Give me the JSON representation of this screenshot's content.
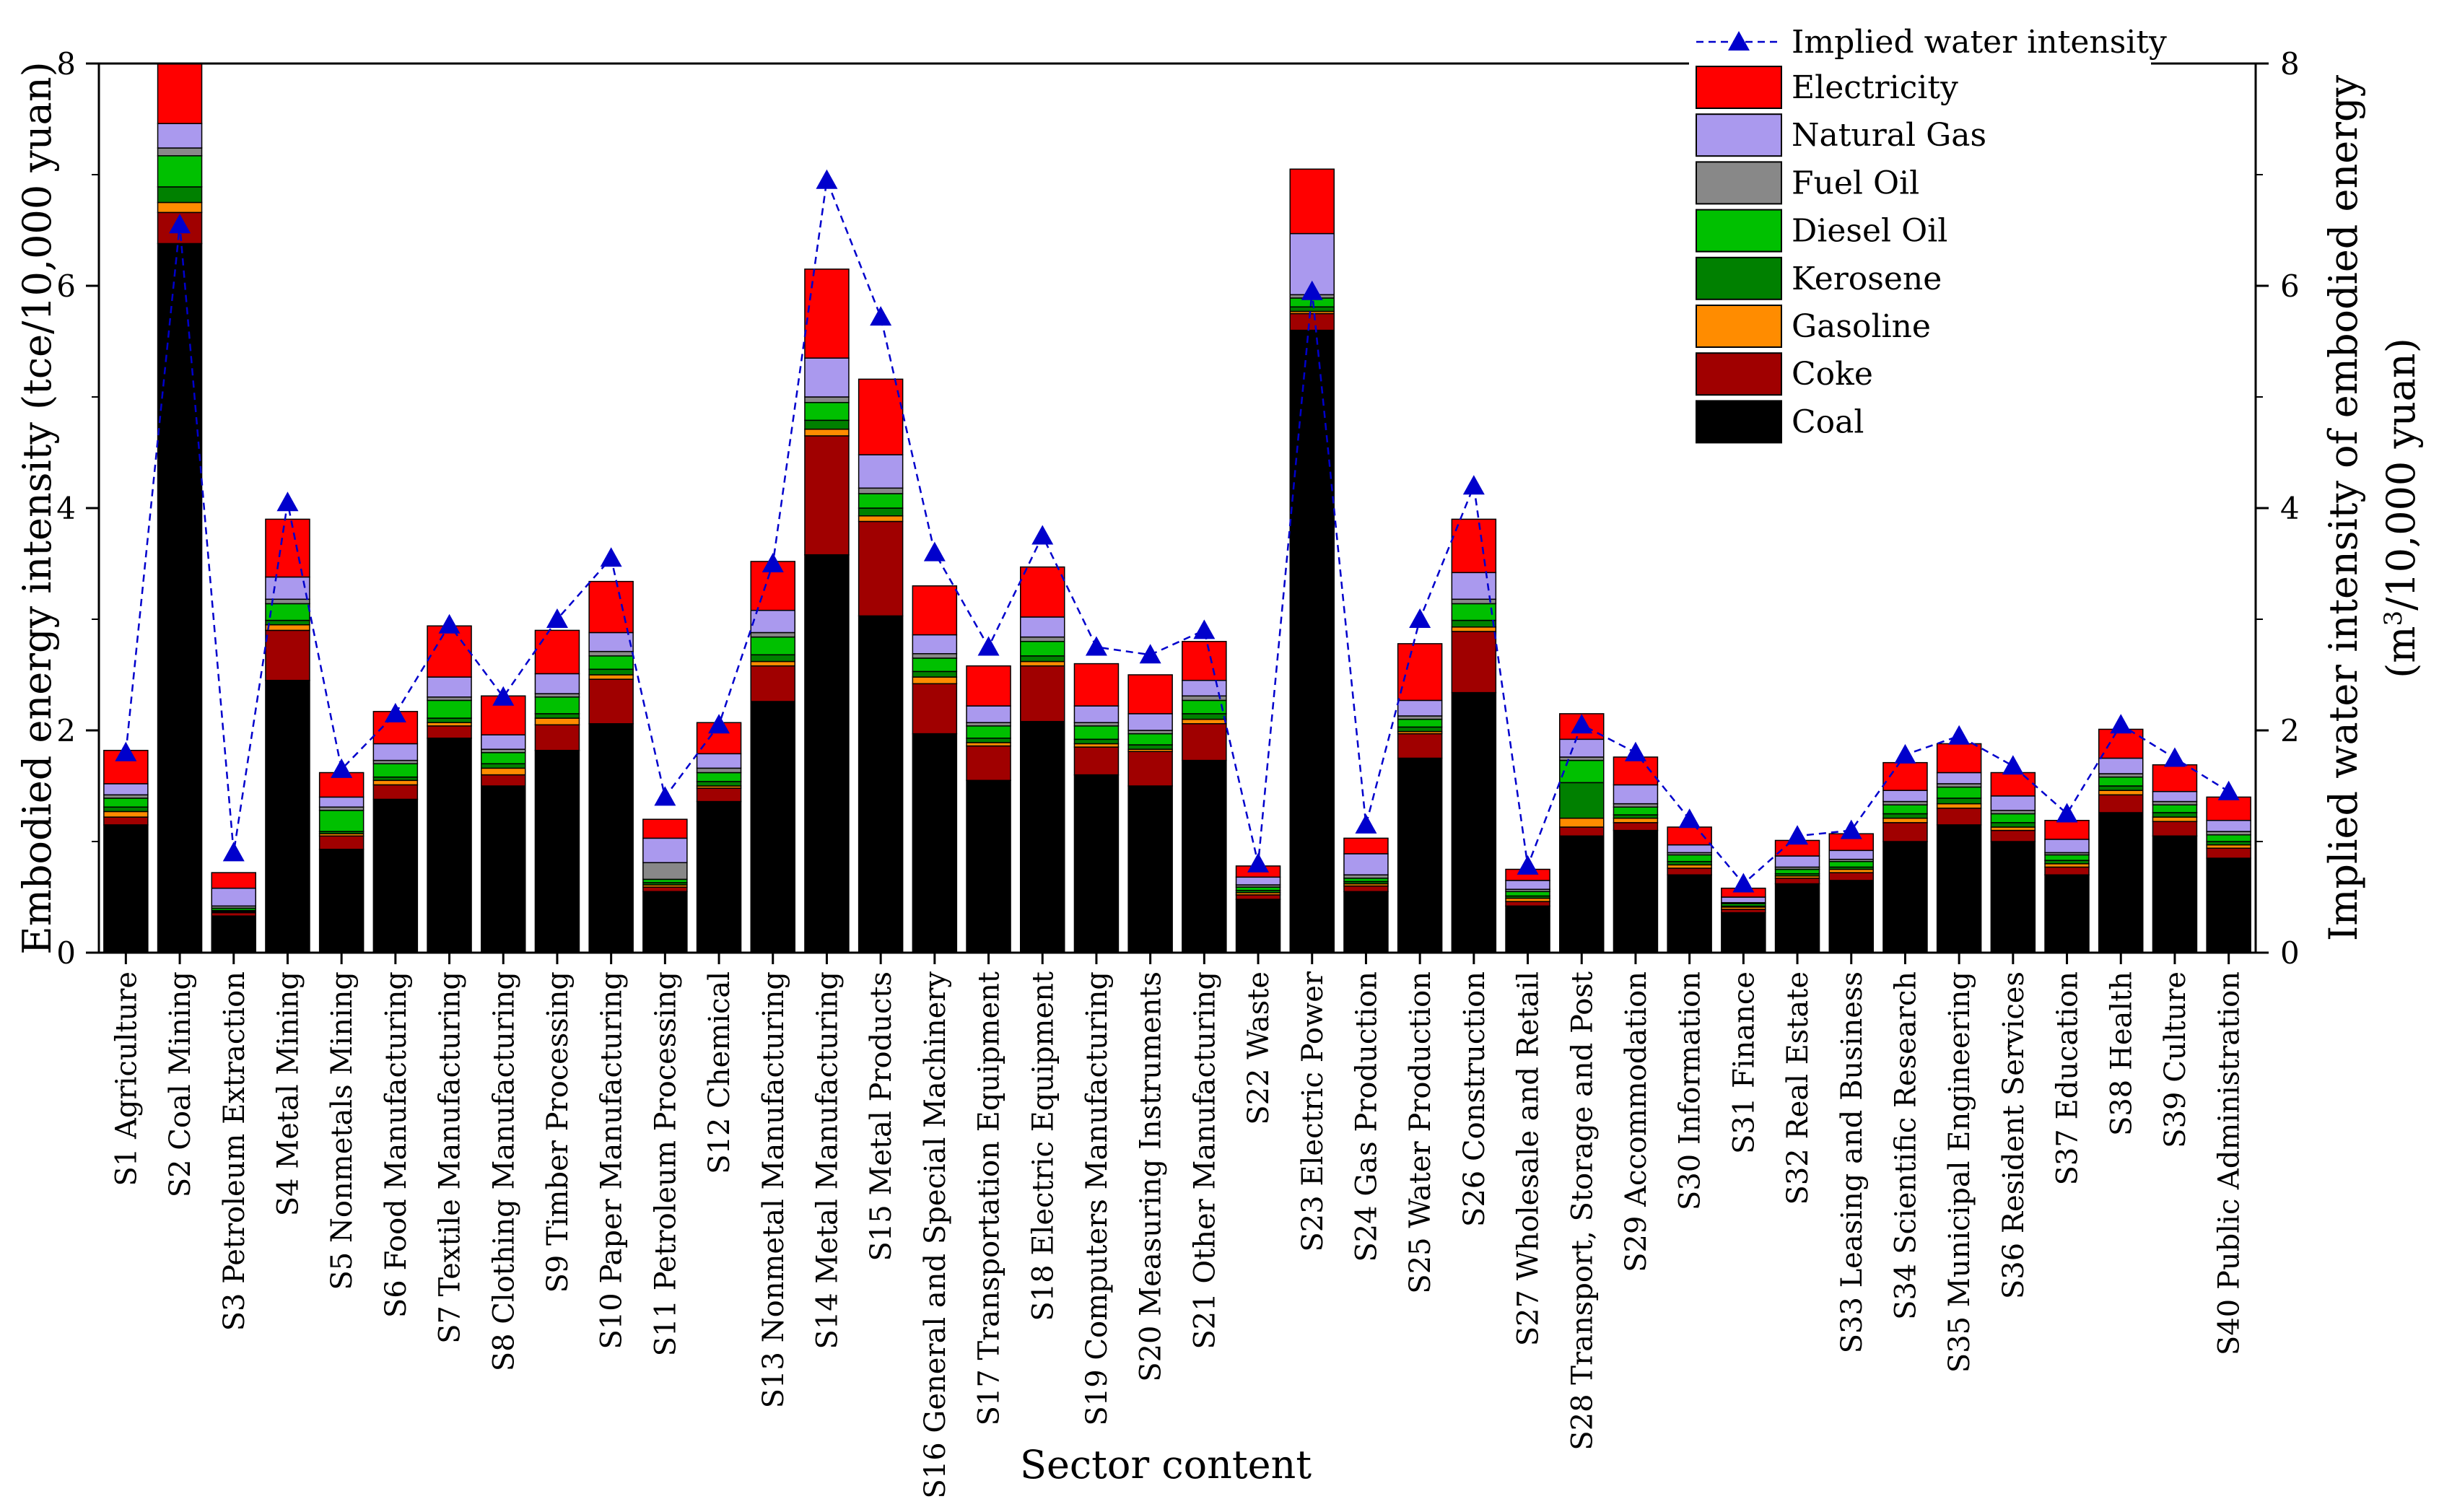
{
  "chart_data": {
    "type": "bar",
    "subtype": "stacked-bar-with-line",
    "xlabel": "Sector content",
    "ylabel": "Embodied energy intensity (tce/10,000 yuan)",
    "y2label_line1": "Implied water intensity of embodied energy",
    "y2label_line2_pre": "(m",
    "y2label_sup": "3",
    "y2label_line2_post": "/10,000 yuan)",
    "ylim": [
      0,
      8
    ],
    "y2lim": [
      0,
      8
    ],
    "yticks": [
      "0",
      "2",
      "4",
      "6",
      "8"
    ],
    "y2ticks": [
      "0",
      "2",
      "4",
      "6",
      "8"
    ],
    "legend_position": "top-right",
    "line_series": {
      "name": "Implied water intensity",
      "color": "#0000cc"
    },
    "categories": [
      "S1 Agriculture",
      "S2 Coal Mining",
      "S3 Petroleum Extraction",
      "S4 Metal Mining",
      "S5 Nonmetals Mining",
      "S6 Food Manufacturing",
      "S7 Textile Manufacturing",
      "S8 Clothing Manufacturing",
      "S9 Timber Processing",
      "S10 Paper Manufacturing",
      "S11 Petroleum Processing",
      "S12 Chemical",
      "S13 Nonmetal Manufacturing",
      "S14 Metal Manufacturing",
      "S15 Metal Products",
      "S16 General and Special Machinery",
      "S17 Transportation Equipment",
      "S18 Electric Equipment",
      "S19 Computers Manufacturing",
      "S20 Measuring Instruments",
      "S21 Other Manufacturing",
      "S22 Waste",
      "S23 Electric Power",
      "S24 Gas Production",
      "S25 Water Production",
      "S26 Construction",
      "S27 Wholesale and Retail",
      "S28 Transport, Storage and Post",
      "S29 Accommodation",
      "S30 Information",
      "S31 Finance",
      "S32 Real Estate",
      "S33 Leasing and Business",
      "S34 Scientific Research",
      "S35 Municipal Engineering",
      "S36 Resident Services",
      "S37 Education",
      "S38 Health",
      "S39 Culture",
      "S40 Public Administration"
    ],
    "series": [
      {
        "name": "Coal",
        "color": "#000000",
        "values": [
          1.15,
          6.38,
          0.33,
          2.45,
          0.93,
          1.38,
          1.93,
          1.5,
          1.82,
          2.06,
          0.55,
          1.36,
          2.26,
          3.58,
          3.03,
          1.97,
          1.55,
          2.08,
          1.6,
          1.5,
          1.73,
          0.48,
          5.6,
          0.55,
          1.75,
          2.34,
          0.42,
          1.05,
          1.1,
          0.7,
          0.36,
          0.62,
          0.65,
          1.0,
          1.15,
          1.0,
          0.7,
          1.26,
          1.05,
          0.85
        ]
      },
      {
        "name": "Coke",
        "color": "#a00000",
        "values": [
          0.07,
          0.28,
          0.03,
          0.45,
          0.12,
          0.13,
          0.11,
          0.1,
          0.23,
          0.4,
          0.04,
          0.12,
          0.32,
          1.07,
          0.85,
          0.45,
          0.31,
          0.5,
          0.25,
          0.31,
          0.33,
          0.04,
          0.15,
          0.05,
          0.22,
          0.55,
          0.04,
          0.08,
          0.07,
          0.06,
          0.03,
          0.05,
          0.07,
          0.17,
          0.15,
          0.1,
          0.07,
          0.16,
          0.13,
          0.09
        ]
      },
      {
        "name": "Gasoline",
        "color": "#ff8c00",
        "values": [
          0.05,
          0.09,
          0.01,
          0.05,
          0.02,
          0.04,
          0.03,
          0.06,
          0.06,
          0.04,
          0.02,
          0.02,
          0.04,
          0.06,
          0.05,
          0.06,
          0.03,
          0.04,
          0.03,
          0.02,
          0.04,
          0.02,
          0.02,
          0.02,
          0.02,
          0.04,
          0.03,
          0.08,
          0.04,
          0.03,
          0.02,
          0.02,
          0.03,
          0.04,
          0.04,
          0.03,
          0.03,
          0.04,
          0.04,
          0.03
        ]
      },
      {
        "name": "Kerosene",
        "color": "#008000",
        "values": [
          0.04,
          0.14,
          0.01,
          0.04,
          0.02,
          0.03,
          0.04,
          0.04,
          0.04,
          0.05,
          0.02,
          0.04,
          0.06,
          0.08,
          0.07,
          0.05,
          0.04,
          0.05,
          0.04,
          0.04,
          0.05,
          0.02,
          0.04,
          0.02,
          0.04,
          0.06,
          0.02,
          0.32,
          0.03,
          0.03,
          0.01,
          0.02,
          0.02,
          0.04,
          0.05,
          0.04,
          0.03,
          0.04,
          0.04,
          0.03
        ]
      },
      {
        "name": "Diesel Oil",
        "color": "#00c000",
        "values": [
          0.08,
          0.28,
          0.02,
          0.15,
          0.19,
          0.12,
          0.16,
          0.1,
          0.15,
          0.12,
          0.03,
          0.08,
          0.16,
          0.16,
          0.13,
          0.12,
          0.11,
          0.13,
          0.12,
          0.1,
          0.12,
          0.03,
          0.08,
          0.03,
          0.07,
          0.15,
          0.04,
          0.2,
          0.07,
          0.06,
          0.02,
          0.04,
          0.05,
          0.08,
          0.1,
          0.08,
          0.05,
          0.08,
          0.07,
          0.06
        ]
      },
      {
        "name": "Fuel Oil",
        "color": "#888888",
        "values": [
          0.03,
          0.07,
          0.02,
          0.04,
          0.03,
          0.03,
          0.03,
          0.03,
          0.03,
          0.04,
          0.15,
          0.04,
          0.04,
          0.05,
          0.05,
          0.04,
          0.03,
          0.04,
          0.03,
          0.03,
          0.04,
          0.02,
          0.03,
          0.03,
          0.03,
          0.04,
          0.02,
          0.03,
          0.03,
          0.02,
          0.01,
          0.02,
          0.02,
          0.03,
          0.03,
          0.03,
          0.02,
          0.03,
          0.03,
          0.03
        ]
      },
      {
        "name": "Natural Gas",
        "color": "#aa99ee",
        "values": [
          0.1,
          0.22,
          0.16,
          0.2,
          0.09,
          0.15,
          0.18,
          0.13,
          0.18,
          0.17,
          0.22,
          0.13,
          0.2,
          0.35,
          0.3,
          0.17,
          0.15,
          0.18,
          0.15,
          0.15,
          0.14,
          0.07,
          0.55,
          0.19,
          0.14,
          0.24,
          0.08,
          0.16,
          0.17,
          0.07,
          0.05,
          0.1,
          0.08,
          0.1,
          0.1,
          0.13,
          0.12,
          0.14,
          0.09,
          0.1
        ]
      },
      {
        "name": "Electricity",
        "color": "#ff0000",
        "values": [
          0.3,
          0.54,
          0.14,
          0.52,
          0.22,
          0.29,
          0.46,
          0.35,
          0.39,
          0.46,
          0.17,
          0.28,
          0.44,
          0.8,
          0.68,
          0.44,
          0.36,
          0.45,
          0.38,
          0.35,
          0.35,
          0.1,
          0.58,
          0.14,
          0.51,
          0.48,
          0.1,
          0.23,
          0.25,
          0.16,
          0.08,
          0.14,
          0.15,
          0.25,
          0.26,
          0.21,
          0.17,
          0.26,
          0.24,
          0.21
        ]
      }
    ],
    "line_values": [
      1.8,
      6.55,
      0.9,
      4.05,
      1.65,
      2.15,
      2.95,
      2.3,
      3.0,
      3.55,
      1.4,
      2.05,
      3.5,
      6.95,
      5.72,
      3.6,
      2.75,
      3.75,
      2.75,
      2.68,
      2.9,
      0.8,
      5.95,
      1.15,
      3.0,
      4.2,
      0.78,
      2.05,
      1.8,
      1.2,
      0.62,
      1.05,
      1.1,
      1.78,
      1.95,
      1.68,
      1.25,
      2.05,
      1.75,
      1.45
    ]
  }
}
